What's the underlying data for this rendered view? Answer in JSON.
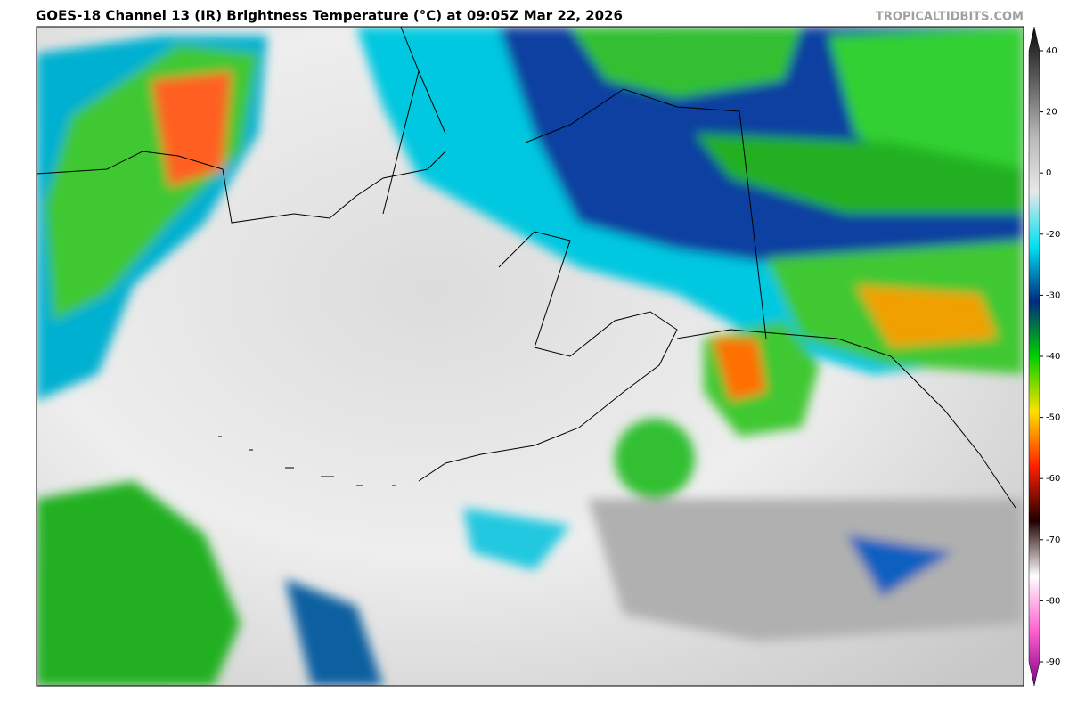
{
  "header": {
    "title": "GOES-18 Channel 13 (IR) Brightness Temperature (°C) at 09:05Z Mar 22, 2026",
    "source": "TROPICALTIDBITS.COM"
  },
  "colorbar": {
    "ticks": [
      40,
      20,
      0,
      -20,
      -30,
      -40,
      -50,
      -60,
      -70,
      -80,
      -90
    ],
    "colors": [
      "#0a0a0a",
      "#606060",
      "#b8b8b8",
      "#e8e8e8",
      "#00e0f0",
      "#002a80",
      "#00d000",
      "#ffe000",
      "#ff2000",
      "#200000",
      "#ffffff",
      "#ff60d0",
      "#800080"
    ]
  }
}
